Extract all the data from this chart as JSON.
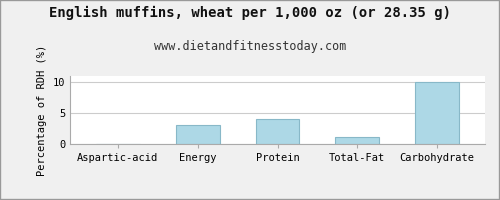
{
  "title": "English muffins, wheat per 1,000 oz (or 28.35 g)",
  "subtitle": "www.dietandfitnesstoday.com",
  "categories": [
    "Aspartic-acid",
    "Energy",
    "Protein",
    "Total-Fat",
    "Carbohydrate"
  ],
  "values": [
    0.0,
    3.0,
    4.0,
    1.1,
    10.0
  ],
  "bar_color": "#add8e6",
  "bar_edge_color": "#88b8c8",
  "ylabel": "Percentage of RDH (%)",
  "ylim": [
    0,
    11
  ],
  "yticks": [
    0,
    5,
    10
  ],
  "background_color": "#f0f0f0",
  "plot_bg_color": "#ffffff",
  "title_fontsize": 10,
  "subtitle_fontsize": 8.5,
  "ylabel_fontsize": 7.5,
  "tick_fontsize": 7.5,
  "grid_color": "#cccccc",
  "border_color": "#aaaaaa",
  "fig_border_color": "#999999"
}
